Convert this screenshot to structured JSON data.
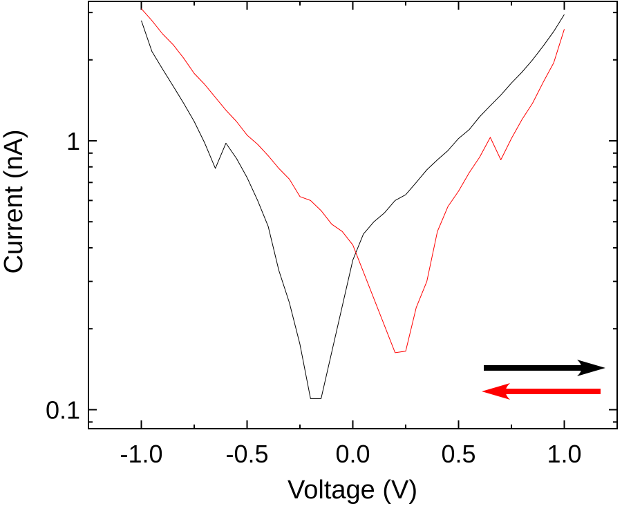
{
  "chart_data": {
    "type": "line",
    "xlabel": "Voltage (V)",
    "ylabel": "Current (nA)",
    "xlim": [
      -1.25,
      1.25
    ],
    "ylim": [
      0.085,
      3.3
    ],
    "yscale": "log",
    "x_ticks": [
      {
        "value": -1.0,
        "label": "-1.0"
      },
      {
        "value": -0.5,
        "label": "-0.5"
      },
      {
        "value": 0.0,
        "label": "0.0"
      },
      {
        "value": 0.5,
        "label": "0.5"
      },
      {
        "value": 1.0,
        "label": "1.0"
      }
    ],
    "y_ticks": [
      {
        "value": 0.1,
        "label": "0.1"
      },
      {
        "value": 1,
        "label": "1"
      }
    ],
    "grid": false,
    "series": [
      {
        "color": "#000000",
        "x": [
          -1.0,
          -0.95,
          -0.9,
          -0.85,
          -0.8,
          -0.75,
          -0.7,
          -0.65,
          -0.6,
          -0.55,
          -0.5,
          -0.45,
          -0.4,
          -0.35,
          -0.3,
          -0.25,
          -0.2,
          -0.15,
          0.0,
          0.05,
          0.1,
          0.15,
          0.2,
          0.25,
          0.3,
          0.35,
          0.4,
          0.45,
          0.5,
          0.55,
          0.6,
          0.65,
          0.7,
          0.75,
          0.8,
          0.85,
          0.9,
          0.95,
          1.0
        ],
        "y": [
          2.8,
          2.15,
          1.85,
          1.6,
          1.38,
          1.18,
          0.98,
          0.79,
          0.98,
          0.86,
          0.73,
          0.6,
          0.48,
          0.33,
          0.25,
          0.175,
          0.11,
          0.11,
          0.36,
          0.45,
          0.5,
          0.54,
          0.6,
          0.63,
          0.7,
          0.78,
          0.85,
          0.92,
          1.02,
          1.1,
          1.23,
          1.35,
          1.48,
          1.64,
          1.8,
          2.0,
          2.25,
          2.55,
          2.95
        ]
      },
      {
        "color": "#ff0000",
        "x": [
          1.0,
          0.95,
          0.9,
          0.85,
          0.8,
          0.75,
          0.7,
          0.65,
          0.6,
          0.55,
          0.5,
          0.45,
          0.4,
          0.35,
          0.3,
          0.25,
          0.2,
          0.0,
          -0.05,
          -0.1,
          -0.15,
          -0.2,
          -0.25,
          -0.3,
          -0.35,
          -0.4,
          -0.45,
          -0.5,
          -0.55,
          -0.6,
          -0.65,
          -0.7,
          -0.75,
          -0.8,
          -0.85,
          -0.9,
          -0.95,
          -1.0
        ],
        "y": [
          2.6,
          1.95,
          1.65,
          1.38,
          1.2,
          1.02,
          0.85,
          1.03,
          0.87,
          0.76,
          0.65,
          0.57,
          0.46,
          0.3,
          0.24,
          0.165,
          0.163,
          0.41,
          0.46,
          0.49,
          0.55,
          0.6,
          0.62,
          0.72,
          0.79,
          0.88,
          0.97,
          1.05,
          1.18,
          1.3,
          1.45,
          1.62,
          1.78,
          2.03,
          2.28,
          2.5,
          2.8,
          3.1
        ]
      }
    ],
    "annotations": [
      {
        "kind": "arrow",
        "direction": "right",
        "color": "#000000"
      },
      {
        "kind": "arrow",
        "direction": "left",
        "color": "#ff0000"
      }
    ]
  }
}
